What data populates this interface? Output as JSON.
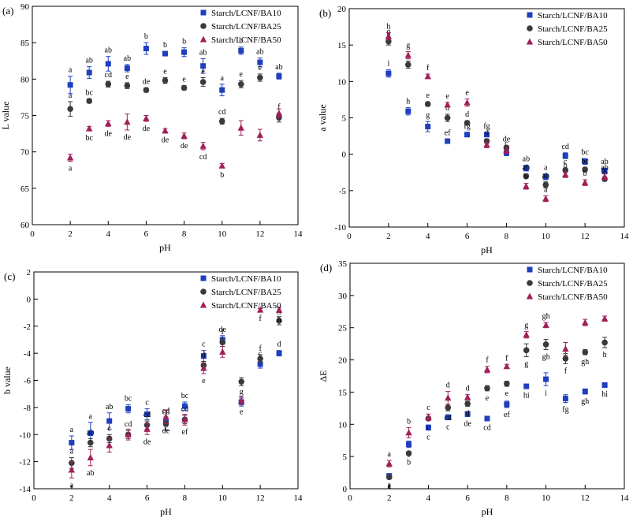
{
  "series_names": [
    "Starch/LCNF/BA10",
    "Starch/LCNF/BA25",
    "Starch/LCNF/BA50"
  ],
  "colors": {
    "BA10": "#1f3fbf",
    "BA25": "#3a3a3a",
    "BA50": "#a0205a"
  },
  "chart_data": [
    {
      "type": "scatter",
      "panel": "(a)",
      "xlabel": "pH",
      "ylabel": "L value",
      "xlim": [
        0,
        14
      ],
      "ylim": [
        60,
        90
      ],
      "xticks": [
        0,
        2,
        4,
        6,
        8,
        10,
        12,
        14
      ],
      "yticks": [
        60,
        65,
        70,
        75,
        80,
        85,
        90
      ],
      "x": [
        2,
        3,
        4,
        5,
        6,
        7,
        8,
        9,
        10,
        11,
        12,
        13
      ],
      "series": [
        {
          "name": "Starch/LCNF/BA10",
          "values": [
            79.2,
            80.9,
            82.1,
            81.5,
            84.2,
            83.5,
            83.7,
            81.8,
            78.5,
            83.9,
            82.3,
            80.4
          ],
          "err": [
            1.2,
            0.8,
            1.0,
            0.5,
            0.8,
            0.3,
            0.6,
            1.0,
            0.8,
            0.5,
            0.6,
            0.4
          ],
          "labels": [
            "a",
            "ab",
            "ab",
            "ab",
            "b",
            "b",
            "b",
            "ab",
            "a",
            "b",
            "ab",
            "ab"
          ]
        },
        {
          "name": "Starch/LCNF/BA25",
          "values": [
            75.9,
            77.0,
            79.3,
            79.1,
            78.5,
            79.8,
            78.8,
            79.6,
            74.2,
            79.3,
            80.2,
            74.7
          ],
          "err": [
            1.0,
            0.3,
            0.4,
            0.4,
            0.3,
            0.4,
            0.3,
            0.6,
            0.4,
            0.5,
            0.5,
            0.6
          ],
          "labels": [
            "a",
            "bc",
            "cd",
            "e",
            "de",
            "e",
            "e",
            "e",
            "cd",
            "e",
            "e",
            "f"
          ]
        },
        {
          "name": "Starch/LCNF/BA50",
          "values": [
            69.2,
            73.2,
            73.9,
            74.1,
            74.6,
            72.9,
            72.2,
            70.8,
            68.1,
            73.3,
            72.3,
            75.3
          ],
          "err": [
            0.5,
            0.3,
            0.4,
            1.1,
            0.4,
            0.3,
            0.4,
            0.5,
            0.3,
            1.0,
            0.8,
            0.6
          ],
          "labels": [
            "a",
            "bc",
            "de",
            "de",
            "de",
            "de",
            "de",
            "cd",
            "b",
            "",
            "",
            ""
          ]
        }
      ]
    },
    {
      "type": "scatter",
      "panel": "(b)",
      "xlabel": "pH",
      "ylabel": "a value",
      "xlim": [
        0,
        14
      ],
      "ylim": [
        -10,
        20
      ],
      "xticks": [
        0,
        2,
        4,
        6,
        8,
        10,
        12,
        14
      ],
      "yticks": [
        -10,
        -5,
        0,
        5,
        10,
        15,
        20
      ],
      "x": [
        2,
        3,
        4,
        5,
        6,
        7,
        8,
        9,
        10,
        11,
        12,
        13
      ],
      "series": [
        {
          "name": "Starch/LCNF/BA10",
          "values": [
            11.1,
            5.9,
            3.8,
            1.8,
            2.7,
            2.7,
            0.2,
            -1.9,
            -3.1,
            -0.2,
            -1.0,
            -2.3
          ],
          "err": [
            0.5,
            0.5,
            0.7,
            0.3,
            0.3,
            0.3,
            0.4,
            0.4,
            0.4,
            0.4,
            0.4,
            0.4
          ],
          "labels": [
            "i",
            "h",
            "g",
            "ef",
            "fg",
            "fg",
            "c",
            "ab",
            "a",
            "cd",
            "bc",
            "ab"
          ]
        },
        {
          "name": "Starch/LCNF/BA25",
          "values": [
            15.5,
            12.3,
            6.9,
            5.0,
            4.3,
            1.8,
            0.9,
            -3.0,
            -4.2,
            -2.2,
            -2.1,
            -3.4
          ],
          "err": [
            0.5,
            0.5,
            0.3,
            0.5,
            0.3,
            0.3,
            0.3,
            0.3,
            0.4,
            0.3,
            0.3,
            0.3
          ],
          "labels": [
            "g",
            "f",
            "e",
            "d",
            "d",
            "d",
            "de",
            "ab",
            "ab",
            "c",
            "bc",
            "bc"
          ]
        },
        {
          "name": "Starch/LCNF/BA50",
          "values": [
            16.2,
            13.6,
            10.7,
            6.8,
            7.1,
            1.3,
            0.5,
            -4.4,
            -6.1,
            -2.8,
            -3.9,
            -3.1
          ],
          "err": [
            0.5,
            0.5,
            0.3,
            0.3,
            0.5,
            0.4,
            0.4,
            0.4,
            0.4,
            0.4,
            0.4,
            0.4
          ],
          "labels": [
            "h",
            "g",
            "f",
            "e",
            "e",
            "",
            "",
            "b",
            "a",
            "b",
            "b",
            "ab"
          ]
        }
      ]
    },
    {
      "type": "scatter",
      "panel": "(c)",
      "xlabel": "pH",
      "ylabel": "b value",
      "xlim": [
        0,
        14
      ],
      "ylim": [
        -14,
        2
      ],
      "xticks": [
        0,
        2,
        4,
        6,
        8,
        10,
        12,
        14
      ],
      "yticks": [
        -14,
        -12,
        -10,
        -8,
        -6,
        -4,
        -2,
        0,
        2
      ],
      "x": [
        2,
        3,
        4,
        5,
        6,
        7,
        8,
        9,
        10,
        11,
        12,
        13
      ],
      "series": [
        {
          "name": "Starch/LCNF/BA10",
          "values": [
            -10.6,
            -9.9,
            -9.0,
            -8.1,
            -8.5,
            -9.1,
            -7.9,
            -4.2,
            -3.0,
            -7.6,
            -4.8,
            -4.0
          ],
          "err": [
            0.5,
            0.8,
            0.6,
            0.3,
            0.4,
            0.3,
            0.3,
            0.4,
            0.3,
            0.3,
            0.3,
            0.2
          ],
          "labels": [
            "a",
            "a",
            "ab",
            "bc",
            "c",
            "cd",
            "bc",
            "c",
            "de",
            "g",
            "c",
            "d"
          ]
        },
        {
          "name": "Starch/LCNF/BA25",
          "values": [
            -12.1,
            -10.6,
            -10.3,
            -10.0,
            -9.3,
            -9.2,
            -8.9,
            -4.9,
            -3.2,
            -6.1,
            -4.4,
            -1.6
          ],
          "err": [
            0.4,
            0.3,
            0.3,
            0.3,
            0.3,
            0.5,
            0.3,
            0.3,
            0.3,
            0.3,
            0.3,
            0.3
          ],
          "labels": [
            "a",
            "ab",
            "c",
            "cd",
            "cd",
            "cd",
            "cd",
            "d",
            "f",
            "",
            "f",
            "g"
          ]
        },
        {
          "name": "Starch/LCNF/BA50",
          "values": [
            -12.6,
            -11.7,
            -10.8,
            -10.0,
            -9.6,
            -8.7,
            -8.9,
            -5.1,
            -3.9,
            -7.5,
            -0.8,
            -0.8
          ],
          "err": [
            0.6,
            0.6,
            0.5,
            0.4,
            0.4,
            0.5,
            0.4,
            0.4,
            0.4,
            0.3,
            0.1,
            0.2
          ],
          "labels": [
            "a",
            "ab",
            "",
            "",
            "de",
            "de",
            "ef",
            "e",
            "",
            "e",
            "f",
            "h"
          ]
        }
      ]
    },
    {
      "type": "scatter",
      "panel": "(d)",
      "xlabel": "pH",
      "ylabel": "ΔE",
      "xlim": [
        0,
        14
      ],
      "ylim": [
        0,
        35
      ],
      "xticks": [
        0,
        2,
        4,
        6,
        8,
        10,
        12,
        14
      ],
      "yticks": [
        0,
        5,
        10,
        15,
        20,
        25,
        30,
        35
      ],
      "x": [
        2,
        3,
        4,
        5,
        6,
        7,
        8,
        9,
        10,
        11,
        12,
        13
      ],
      "series": [
        {
          "name": "Starch/LCNF/BA10",
          "values": [
            2.0,
            6.9,
            9.5,
            11.1,
            11.6,
            10.9,
            13.1,
            15.9,
            17.0,
            14.0,
            15.1,
            16.1
          ],
          "err": [
            0.3,
            0.5,
            0.4,
            0.4,
            0.4,
            0.3,
            0.5,
            0.3,
            1.0,
            0.6,
            0.4,
            0.3
          ],
          "labels": [
            "a",
            "b",
            "c",
            "c",
            "de",
            "cd",
            "ef",
            "hi",
            "i",
            "fg",
            "gh",
            "hi"
          ]
        },
        {
          "name": "Starch/LCNF/BA25",
          "values": [
            1.8,
            5.5,
            10.9,
            12.6,
            13.2,
            15.6,
            16.3,
            21.5,
            22.4,
            20.2,
            21.2,
            22.7
          ],
          "err": [
            0.3,
            0.3,
            0.3,
            0.5,
            0.4,
            0.4,
            0.4,
            1.0,
            0.8,
            0.8,
            0.4,
            0.8
          ],
          "labels": [
            "a",
            "b",
            "c",
            "cd",
            "d",
            "e",
            "e",
            "g",
            "gh",
            "f",
            "gh",
            "h"
          ]
        },
        {
          "name": "Starch/LCNF/BA50",
          "values": [
            3.9,
            8.7,
            11.1,
            14.1,
            14.2,
            18.5,
            19.0,
            23.9,
            25.4,
            21.7,
            25.8,
            26.4
          ],
          "err": [
            0.5,
            0.8,
            0.5,
            1.0,
            0.4,
            0.5,
            0.3,
            0.5,
            0.4,
            1.0,
            0.5,
            0.4
          ],
          "labels": [
            "a",
            "b",
            "c",
            "d",
            "d",
            "f",
            "f",
            "g",
            "gh",
            "",
            "",
            ""
          ]
        }
      ]
    }
  ]
}
